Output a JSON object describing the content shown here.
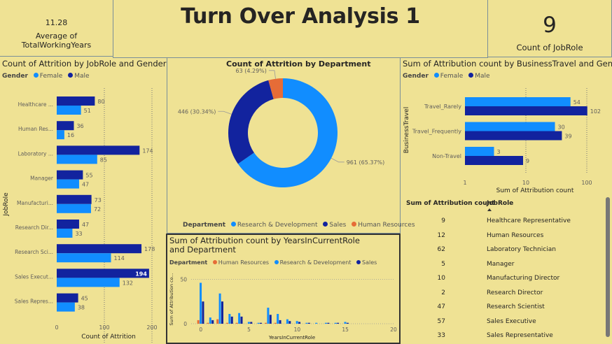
{
  "kpi_avg_working_years": {
    "value": "11.28",
    "label": "Average of TotalWorkingYears"
  },
  "page_title": "Turn Over Analysis 1",
  "kpi_count_jobrole": {
    "value": "9",
    "label": "Count of JobRole"
  },
  "colors": {
    "female": "#118dff",
    "male": "#12239e",
    "hr": "#e66c37",
    "background": "#efe294"
  },
  "chart_data": [
    {
      "type": "bar",
      "orientation": "horizontal",
      "title": "Count of Attrition by JobRole and Gender",
      "legend_title": "Gender",
      "xlabel": "Count of Attrition",
      "ylabel": "JobRole",
      "xlim": [
        0,
        200
      ],
      "xticks": [
        "0",
        "100",
        "200"
      ],
      "categories": [
        "Healthcare ...",
        "Human Res...",
        "Laboratory ...",
        "Manager",
        "Manufacturi...",
        "Research Dir...",
        "Research Sci...",
        "Sales Execut...",
        "Sales Repres..."
      ],
      "series": [
        {
          "name": "Female",
          "values": [
            51,
            16,
            85,
            47,
            72,
            33,
            114,
            132,
            38
          ]
        },
        {
          "name": "Male",
          "values": [
            80,
            36,
            174,
            55,
            73,
            47,
            178,
            194,
            45
          ]
        }
      ]
    },
    {
      "type": "pie",
      "style": "donut",
      "title": "Count of Attrition by Department",
      "legend_title": "Department",
      "slices": [
        {
          "name": "Research & Development",
          "value": 961,
          "label": "961 (65.37%)"
        },
        {
          "name": "Sales",
          "value": 446,
          "label": "446 (30.34%)"
        },
        {
          "name": "Human Resources",
          "value": 63,
          "label": "63 (4.29%)"
        }
      ]
    },
    {
      "type": "bar",
      "orientation": "horizontal",
      "title": "Sum of Attribution count by BusinessTravel and Gender",
      "legend_title": "Gender",
      "xlabel": "Sum of Attribution count",
      "ylabel": "BusinessTravel",
      "xscale": "log",
      "xlim": [
        1,
        100
      ],
      "xticks": [
        "1",
        "10",
        "100"
      ],
      "categories": [
        "Travel_Rarely",
        "Travel_Frequently",
        "Non-Travel"
      ],
      "series": [
        {
          "name": "Female",
          "values": [
            54,
            30,
            3
          ]
        },
        {
          "name": "Male",
          "values": [
            102,
            39,
            9
          ]
        }
      ]
    },
    {
      "type": "bar",
      "title": "Sum of Attribution count by YearsInCurrentRole and Department",
      "legend_title": "Department",
      "xlabel": "YearsInCurrentRole",
      "ylabel": "Sum of Attribution co...",
      "xlim": [
        -1,
        20
      ],
      "ylim": [
        0,
        55
      ],
      "xticks": [
        "0",
        "5",
        "10",
        "15",
        "20"
      ],
      "yticks": [
        "0",
        "50"
      ],
      "x": [
        0,
        1,
        2,
        3,
        4,
        5,
        6,
        7,
        8,
        9,
        10,
        11,
        12,
        13,
        14,
        15
      ],
      "series": [
        {
          "name": "Human Resources",
          "values": [
            4,
            1,
            5,
            1,
            1,
            0,
            0,
            1,
            1,
            0,
            0,
            0,
            0,
            0,
            0,
            0
          ]
        },
        {
          "name": "Research & Development",
          "values": [
            46,
            7,
            34,
            11,
            12,
            2,
            1,
            18,
            11,
            5,
            3,
            1,
            1,
            1,
            1,
            2
          ]
        },
        {
          "name": "Sales",
          "values": [
            25,
            4,
            25,
            8,
            8,
            2,
            1,
            10,
            4,
            3,
            2,
            1,
            0,
            1,
            1,
            1
          ]
        }
      ]
    },
    {
      "type": "table",
      "columns": [
        "Sum of Attribution count",
        "JobRole"
      ],
      "rows": [
        [
          "9",
          "Healthcare Representative"
        ],
        [
          "12",
          "Human Resources"
        ],
        [
          "62",
          "Laboratory Technician"
        ],
        [
          "5",
          "Manager"
        ],
        [
          "10",
          "Manufacturing Director"
        ],
        [
          "2",
          "Research Director"
        ],
        [
          "47",
          "Research Scientist"
        ],
        [
          "57",
          "Sales Executive"
        ],
        [
          "33",
          "Sales Representative"
        ]
      ]
    }
  ]
}
